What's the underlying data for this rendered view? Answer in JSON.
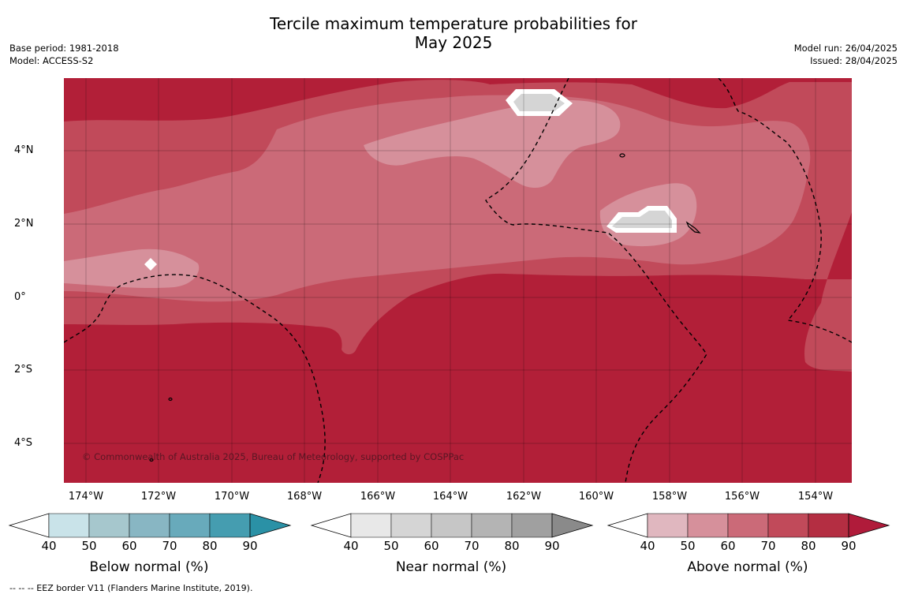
{
  "title": "Tercile maximum temperature probabilities for",
  "title_line2": "May 2025",
  "meta_left": {
    "base_period": "Base period: 1981-2018",
    "model": "Model: ACCESS-S2"
  },
  "meta_right": {
    "model_run": "Model run: 26/04/2025",
    "issued": "Issued: 28/04/2025"
  },
  "map": {
    "x_ticks": [
      "174°W",
      "172°W",
      "170°W",
      "168°W",
      "166°W",
      "164°W",
      "162°W",
      "160°W",
      "158°W",
      "156°W",
      "154°W"
    ],
    "y_ticks": [
      "4°N",
      "2°N",
      "0°",
      "2°S",
      "4°S"
    ],
    "copyright": "© Commonwealth of Australia 2025, Bureau of Meteorology, supported by COSPPac",
    "colors": {
      "above_50": "#e0b7bf",
      "above_60": "#d6909b",
      "above_70": "#cb6a78",
      "above_80": "#c14a5a",
      "above_90": "#b21f38",
      "near_50": "#e8e8e8",
      "near_60": "#d5d5d5"
    }
  },
  "colorbars": [
    {
      "label": "Below normal (%)",
      "ticks": [
        "40",
        "50",
        "60",
        "70",
        "80",
        "90"
      ],
      "colors": [
        "#ffffff",
        "#c9e3e9",
        "#a6c7cd",
        "#88b6c3",
        "#68aabb",
        "#459db0",
        "#2a91a6"
      ]
    },
    {
      "label": "Near normal (%)",
      "ticks": [
        "40",
        "50",
        "60",
        "70",
        "80",
        "90"
      ],
      "colors": [
        "#ffffff",
        "#e8e8e8",
        "#d5d5d5",
        "#c6c6c6",
        "#b4b4b4",
        "#a0a0a0",
        "#8a8a8a"
      ]
    },
    {
      "label": "Above normal (%)",
      "ticks": [
        "40",
        "50",
        "60",
        "70",
        "80",
        "90"
      ],
      "colors": [
        "#ffffff",
        "#e0b7bf",
        "#d6909b",
        "#cb6a78",
        "#c14a5a",
        "#b42e42",
        "#b01b3a"
      ]
    }
  ],
  "footnote": "--  --  -- EEZ border V11 (Flanders Marine Institute, 2019)."
}
